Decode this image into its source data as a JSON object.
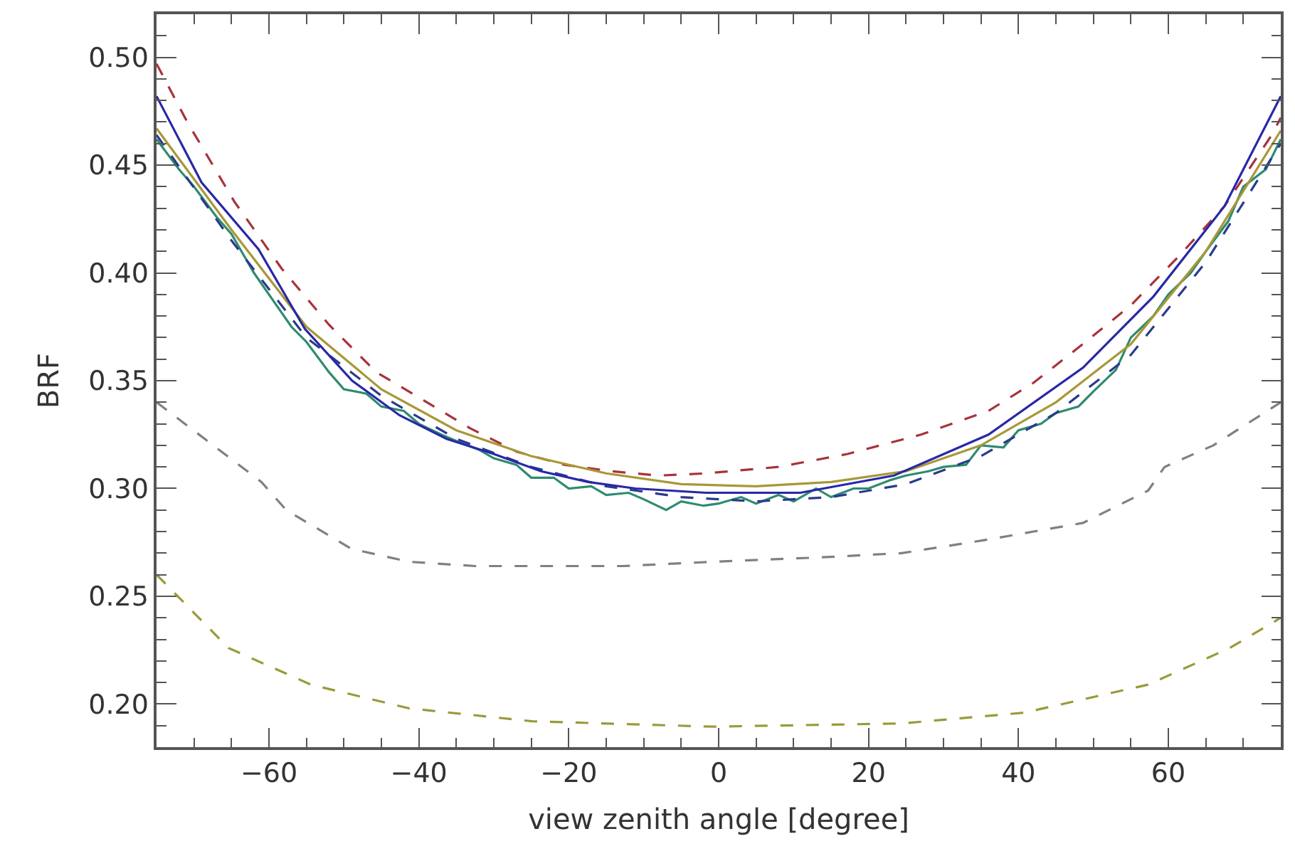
{
  "chart_data": {
    "type": "line",
    "xlabel": "view zenith angle [degree]",
    "ylabel": "BRF",
    "xlim": [
      -75,
      75
    ],
    "ylim": [
      0.18,
      0.52
    ],
    "xticks": [
      {
        "value": -70,
        "label": null
      },
      {
        "value": -65,
        "label": null
      },
      {
        "value": -60,
        "label": "−60"
      },
      {
        "value": -55,
        "label": null
      },
      {
        "value": -50,
        "label": null
      },
      {
        "value": -45,
        "label": null
      },
      {
        "value": -40,
        "label": "−40"
      },
      {
        "value": -35,
        "label": null
      },
      {
        "value": -30,
        "label": null
      },
      {
        "value": -25,
        "label": null
      },
      {
        "value": -20,
        "label": "−20"
      },
      {
        "value": -15,
        "label": null
      },
      {
        "value": -10,
        "label": null
      },
      {
        "value": -5,
        "label": null
      },
      0,
      {
        "value": 5,
        "label": null
      },
      {
        "value": 10,
        "label": null
      },
      {
        "value": 15,
        "label": null
      },
      20,
      {
        "value": 25,
        "label": null
      },
      {
        "value": 30,
        "label": null
      },
      {
        "value": 35,
        "label": null
      },
      40,
      {
        "value": 45,
        "label": null
      },
      {
        "value": 50,
        "label": null
      },
      {
        "value": 55,
        "label": null
      },
      60,
      {
        "value": 65,
        "label": null
      },
      {
        "value": 70,
        "label": null
      }
    ],
    "yticks": [
      {
        "value": 0.19,
        "label": null
      },
      {
        "value": 0.2,
        "label": "0.20"
      },
      {
        "value": 0.21,
        "label": null
      },
      {
        "value": 0.22,
        "label": null
      },
      {
        "value": 0.23,
        "label": null
      },
      {
        "value": 0.24,
        "label": null
      },
      {
        "value": 0.25,
        "label": "0.25"
      },
      {
        "value": 0.26,
        "label": null
      },
      {
        "value": 0.27,
        "label": null
      },
      {
        "value": 0.28,
        "label": null
      },
      {
        "value": 0.29,
        "label": null
      },
      {
        "value": 0.3,
        "label": "0.30"
      },
      {
        "value": 0.31,
        "label": null
      },
      {
        "value": 0.32,
        "label": null
      },
      {
        "value": 0.33,
        "label": null
      },
      {
        "value": 0.34,
        "label": null
      },
      {
        "value": 0.35,
        "label": "0.35"
      },
      {
        "value": 0.36,
        "label": null
      },
      {
        "value": 0.37,
        "label": null
      },
      {
        "value": 0.38,
        "label": null
      },
      {
        "value": 0.39,
        "label": null
      },
      {
        "value": 0.4,
        "label": "0.40"
      },
      {
        "value": 0.41,
        "label": null
      },
      {
        "value": 0.42,
        "label": null
      },
      {
        "value": 0.43,
        "label": null
      },
      {
        "value": 0.44,
        "label": null
      },
      {
        "value": 0.45,
        "label": "0.45"
      },
      {
        "value": 0.46,
        "label": null
      },
      {
        "value": 0.47,
        "label": null
      },
      {
        "value": 0.48,
        "label": null
      },
      {
        "value": 0.49,
        "label": null
      },
      {
        "value": 0.5,
        "label": "0.50"
      },
      {
        "value": 0.51,
        "label": null
      }
    ],
    "series": [
      {
        "color": "#a8323c",
        "line_style": "dashed",
        "x": [
          -75,
          -70.9,
          -64.6,
          -58.3,
          -52,
          -45.7,
          -39.4,
          -33.2,
          -26.9,
          -20.6,
          -14.3,
          -8,
          -1.7,
          8,
          17.2,
          27,
          36,
          42,
          48.6,
          55,
          61.2,
          67.5,
          73.8,
          75
        ],
        "values": [
          0.497,
          0.47,
          0.433,
          0.402,
          0.376,
          0.354,
          0.341,
          0.328,
          0.317,
          0.311,
          0.308,
          0.306,
          0.307,
          0.31,
          0.316,
          0.325,
          0.336,
          0.349,
          0.367,
          0.385,
          0.407,
          0.431,
          0.464,
          0.472
        ]
      },
      {
        "color": "#2e8b70",
        "line_style": "solid",
        "x": [
          -75,
          -72,
          -70,
          -67,
          -65,
          -62,
          -60,
          -57,
          -55,
          -52,
          -50,
          -47,
          -45,
          -42,
          -40,
          -37,
          -35,
          -32,
          -30,
          -27,
          -25,
          -22,
          -20,
          -17,
          -15,
          -12,
          -10,
          -7,
          -5,
          -2,
          0,
          3,
          5,
          8,
          10,
          13,
          15,
          18,
          20,
          23,
          25,
          28,
          30,
          33,
          35,
          38,
          40,
          43,
          45,
          48,
          50,
          53,
          55,
          58,
          60,
          63,
          65,
          68,
          70,
          73,
          75
        ],
        "values": [
          0.462,
          0.448,
          0.44,
          0.426,
          0.418,
          0.4,
          0.39,
          0.375,
          0.368,
          0.354,
          0.346,
          0.344,
          0.338,
          0.336,
          0.33,
          0.325,
          0.322,
          0.318,
          0.314,
          0.311,
          0.305,
          0.305,
          0.3,
          0.301,
          0.297,
          0.298,
          0.295,
          0.29,
          0.294,
          0.292,
          0.293,
          0.296,
          0.293,
          0.297,
          0.294,
          0.3,
          0.296,
          0.3,
          0.3,
          0.304,
          0.306,
          0.308,
          0.31,
          0.311,
          0.32,
          0.319,
          0.327,
          0.33,
          0.335,
          0.338,
          0.345,
          0.355,
          0.37,
          0.38,
          0.39,
          0.4,
          0.41,
          0.424,
          0.44,
          0.448,
          0.462
        ]
      },
      {
        "color": "#2a3a8c",
        "line_style": "dashed",
        "x": [
          -75,
          -65,
          -55,
          -45,
          -35,
          -25,
          -15,
          -5,
          5,
          15,
          25,
          35,
          45,
          55,
          65,
          75
        ],
        "values": [
          0.464,
          0.415,
          0.37,
          0.343,
          0.323,
          0.31,
          0.301,
          0.296,
          0.294,
          0.296,
          0.302,
          0.315,
          0.335,
          0.362,
          0.405,
          0.46
        ]
      },
      {
        "color": "#a89838",
        "line_style": "solid",
        "x": [
          -75,
          -65,
          -55,
          -45,
          -35,
          -25,
          -15,
          -5,
          5,
          15,
          25,
          35,
          45,
          55,
          65,
          75
        ],
        "values": [
          0.467,
          0.42,
          0.375,
          0.346,
          0.327,
          0.315,
          0.307,
          0.302,
          0.301,
          0.303,
          0.308,
          0.32,
          0.34,
          0.367,
          0.41,
          0.466
        ]
      },
      {
        "color": "#2828a8",
        "line_style": "solid",
        "x": [
          -75,
          -69,
          -61.4,
          -55.2,
          -48.9,
          -42.6,
          -36.3,
          -30,
          -23.7,
          -17.4,
          -11.1,
          -1.7,
          10.9,
          23.4,
          36,
          48.6,
          58,
          67.5,
          75
        ],
        "values": [
          0.482,
          0.442,
          0.411,
          0.374,
          0.35,
          0.334,
          0.323,
          0.316,
          0.308,
          0.303,
          0.3,
          0.298,
          0.298,
          0.306,
          0.325,
          0.356,
          0.389,
          0.431,
          0.482
        ]
      },
      {
        "color": "#808080",
        "line_style": "dashed",
        "x": [
          -75,
          -61,
          -57.7,
          -49,
          -41.3,
          -32.5,
          -19.4,
          -12.8,
          -0.8,
          13.4,
          24.4,
          35.4,
          48.6,
          57.3,
          59.5,
          66,
          75
        ],
        "values": [
          0.34,
          0.303,
          0.29,
          0.272,
          0.266,
          0.264,
          0.264,
          0.264,
          0.266,
          0.268,
          0.27,
          0.276,
          0.284,
          0.299,
          0.31,
          0.32,
          0.34
        ]
      },
      {
        "color": "#9a9a3a",
        "line_style": "dashed",
        "x": [
          -75,
          -65.4,
          -54.4,
          -41.3,
          -24.9,
          -0.8,
          24.4,
          40.8,
          57.3,
          68.2,
          75
        ],
        "values": [
          0.26,
          0.226,
          0.209,
          0.198,
          0.192,
          0.1895,
          0.191,
          0.196,
          0.209,
          0.226,
          0.24
        ]
      }
    ]
  }
}
